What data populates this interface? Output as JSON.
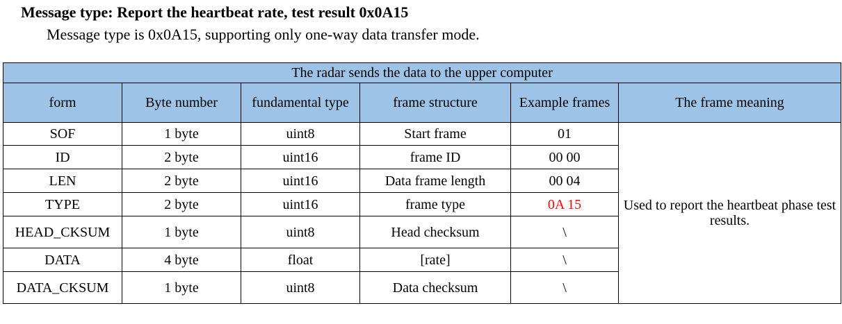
{
  "heading": "Message type: Report the heartbeat rate, test result 0x0A15",
  "intro": "Message type is 0x0A15, supporting only one-way data transfer mode.",
  "table": {
    "title": "The radar sends the data to the upper computer",
    "columns": [
      "form",
      "Byte number",
      "fundamental type",
      "frame structure",
      "Example frames",
      "The frame meaning"
    ],
    "rows": [
      {
        "form": "SOF",
        "bytes": "1 byte",
        "type": "uint8",
        "structure": "Start frame",
        "example": "01"
      },
      {
        "form": "ID",
        "bytes": "2 byte",
        "type": "uint16",
        "structure": "frame ID",
        "example": "00 00"
      },
      {
        "form": "LEN",
        "bytes": "2 byte",
        "type": "uint16",
        "structure": "Data frame length",
        "example": "00 04"
      },
      {
        "form": "TYPE",
        "bytes": "2 byte",
        "type": "uint16",
        "structure": "frame type",
        "example": "0A 15"
      },
      {
        "form": "HEAD_CKSUM",
        "bytes": "1 byte",
        "type": "uint8",
        "structure": "Head checksum",
        "example": "\\"
      },
      {
        "form": "DATA",
        "bytes": "4 byte",
        "type": "float",
        "structure": "[rate]",
        "example": "\\"
      },
      {
        "form": "DATA_CKSUM",
        "bytes": "1 byte",
        "type": "uint8",
        "structure": "Data checksum",
        "example": "\\"
      }
    ],
    "meaning": "Used to report the heartbeat phase test results.",
    "highlight_color": "#ff0000",
    "header_bg": "#9dc3e6"
  }
}
